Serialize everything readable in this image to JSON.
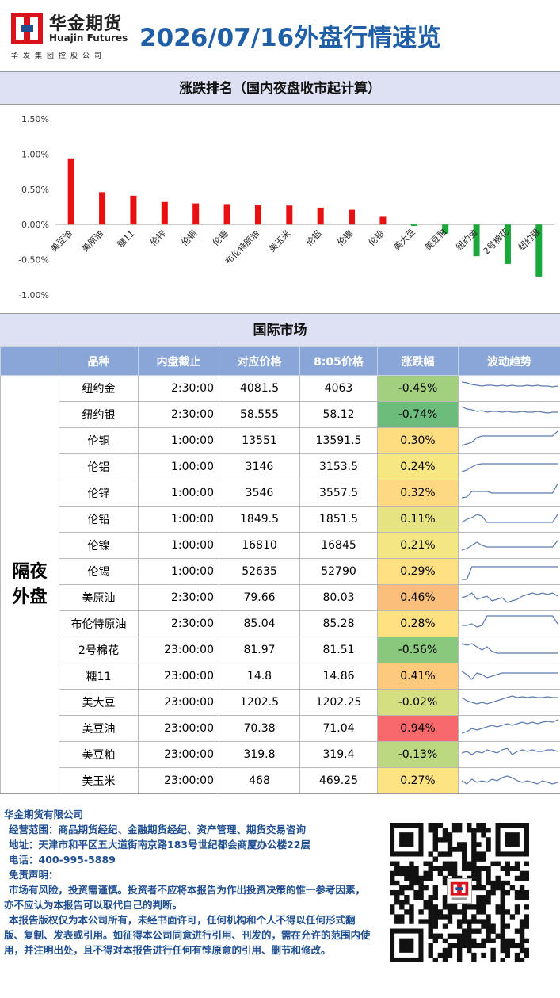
{
  "header": {
    "logo_cn": "华金期货",
    "logo_en": "Huajin Futures",
    "logo_sub": "华发集团控股公司",
    "title": "2026/07/16外盘行情速览"
  },
  "chart_title": "涨跌排名（国内夜盘收市起计算）",
  "chart_data": {
    "type": "bar",
    "categories": [
      "美豆油",
      "美原油",
      "糖11",
      "伦锌",
      "伦铜",
      "伦锡",
      "布伦特原油",
      "美玉米",
      "伦铝",
      "伦镍",
      "伦铅",
      "美大豆",
      "美豆粕",
      "纽约金",
      "2号棉花",
      "纽约银"
    ],
    "values": [
      0.94,
      0.46,
      0.41,
      0.32,
      0.3,
      0.29,
      0.28,
      0.27,
      0.24,
      0.21,
      0.11,
      -0.02,
      -0.13,
      -0.45,
      -0.56,
      -0.74
    ],
    "ylim": [
      -1.0,
      1.5
    ],
    "yticks": [
      "1.50%",
      "1.00%",
      "0.50%",
      "0.00%",
      "-0.50%",
      "-1.00%"
    ],
    "ytick_values": [
      1.5,
      1.0,
      0.5,
      0.0,
      -0.5,
      -1.0
    ],
    "colors": {
      "positive": "#e81010",
      "negative": "#1aa83a"
    }
  },
  "market_title": "国际市场",
  "table": {
    "headers": [
      "品种",
      "内盘截止",
      "对应价格",
      "8:05价格",
      "涨跌幅",
      "波动趋势"
    ],
    "group_label_1": "隔夜",
    "group_label_2": "外盘",
    "rows": [
      {
        "name": "纽约金",
        "close": "2:30:00",
        "price": "4081.5",
        "p805": "4063",
        "chg": "-0.45%",
        "color": "#a3d07f",
        "spark": [
          8,
          9,
          11,
          12,
          13,
          12,
          12,
          13,
          12,
          13,
          12,
          13,
          13,
          12,
          13,
          12,
          13,
          13,
          14,
          13
        ]
      },
      {
        "name": "纽约银",
        "close": "2:30:00",
        "price": "58.555",
        "p805": "58.12",
        "chg": "-0.74%",
        "color": "#6cbd7c",
        "spark": [
          6,
          9,
          10,
          12,
          11,
          13,
          12,
          12,
          13,
          12,
          13,
          13,
          12,
          13,
          13,
          12,
          13,
          14,
          13,
          13
        ]
      },
      {
        "name": "伦铜",
        "close": "1:00:00",
        "price": "13551",
        "p805": "13591.5",
        "chg": "0.30%",
        "color": "#fedd81",
        "spark": [
          22,
          20,
          18,
          12,
          10,
          10,
          10,
          10,
          10,
          10,
          10,
          10,
          10,
          10,
          10,
          10,
          10,
          10,
          10,
          4
        ]
      },
      {
        "name": "伦铝",
        "close": "1:00:00",
        "price": "3146",
        "p805": "3153.5",
        "chg": "0.24%",
        "color": "#f7e783",
        "spark": [
          22,
          20,
          16,
          13,
          12,
          12,
          12,
          12,
          12,
          12,
          12,
          12,
          12,
          12,
          12,
          12,
          12,
          12,
          12,
          12
        ]
      },
      {
        "name": "伦锌",
        "close": "1:00:00",
        "price": "3546",
        "p805": "3557.5",
        "chg": "0.32%",
        "color": "#fed981",
        "spark": [
          22,
          21,
          14,
          14,
          14,
          14,
          16,
          16,
          16,
          16,
          16,
          16,
          16,
          16,
          16,
          16,
          16,
          16,
          16,
          4
        ]
      },
      {
        "name": "伦铅",
        "close": "1:00:00",
        "price": "1849.5",
        "p805": "1851.5",
        "chg": "0.11%",
        "color": "#e5e382",
        "spark": [
          20,
          16,
          14,
          10,
          12,
          20,
          20,
          20,
          20,
          20,
          20,
          20,
          20,
          20,
          20,
          20,
          20,
          20,
          20,
          10
        ]
      },
      {
        "name": "伦镍",
        "close": "1:00:00",
        "price": "16810",
        "p805": "16845",
        "chg": "0.21%",
        "color": "#f4e783",
        "spark": [
          22,
          20,
          16,
          12,
          16,
          18,
          18,
          18,
          18,
          18,
          18,
          18,
          18,
          18,
          18,
          18,
          18,
          18,
          18,
          10
        ]
      },
      {
        "name": "伦锡",
        "close": "1:00:00",
        "price": "52635",
        "p805": "52790",
        "chg": "0.29%",
        "color": "#fee082",
        "spark": [
          26,
          26,
          10,
          10,
          10,
          10,
          10,
          10,
          10,
          10,
          10,
          10,
          10,
          10,
          10,
          10,
          10,
          10,
          10,
          10
        ]
      },
      {
        "name": "美原油",
        "close": "2:30:00",
        "price": "79.66",
        "p805": "80.03",
        "chg": "0.46%",
        "color": "#fcbf7b",
        "spark": [
          16,
          14,
          10,
          18,
          16,
          14,
          20,
          18,
          16,
          22,
          20,
          18,
          14,
          12,
          10,
          12,
          10,
          12,
          10,
          14
        ]
      },
      {
        "name": "布伦特原油",
        "close": "2:30:00",
        "price": "85.04",
        "p805": "85.28",
        "chg": "0.28%",
        "color": "#fee282",
        "spark": [
          18,
          18,
          16,
          20,
          18,
          6,
          6,
          6,
          6,
          6,
          6,
          6,
          6,
          6,
          6,
          6,
          6,
          6,
          6,
          16
        ]
      },
      {
        "name": "2号棉花",
        "close": "23:00:00",
        "price": "81.97",
        "p805": "81.51",
        "chg": "-0.56%",
        "color": "#8ac97d",
        "spark": [
          8,
          10,
          8,
          12,
          16,
          12,
          18,
          20,
          20,
          20,
          20,
          20,
          20,
          20,
          20,
          20,
          20,
          20,
          20,
          20
        ]
      },
      {
        "name": "糖11",
        "close": "23:00:00",
        "price": "14.8",
        "p805": "14.86",
        "chg": "0.41%",
        "color": "#fdc97d",
        "spark": [
          10,
          14,
          20,
          12,
          14,
          18,
          16,
          14,
          12,
          12,
          12,
          12,
          12,
          12,
          12,
          12,
          12,
          12,
          12,
          12
        ]
      },
      {
        "name": "美大豆",
        "close": "23:00:00",
        "price": "1202.5",
        "p805": "1202.25",
        "chg": "-0.02%",
        "color": "#d4df82",
        "spark": [
          10,
          14,
          16,
          18,
          16,
          18,
          16,
          14,
          12,
          10,
          8,
          10,
          9,
          10,
          9,
          10,
          10,
          9,
          10,
          10
        ]
      },
      {
        "name": "美豆油",
        "close": "23:00:00",
        "price": "70.38",
        "p805": "71.04",
        "chg": "0.94%",
        "color": "#f8696b",
        "spark": [
          22,
          20,
          16,
          18,
          16,
          14,
          12,
          14,
          12,
          10,
          12,
          10,
          8,
          10,
          8,
          10,
          8,
          7,
          8,
          5
        ]
      },
      {
        "name": "美豆粕",
        "close": "23:00:00",
        "price": "319.8",
        "p805": "319.4",
        "chg": "-0.13%",
        "color": "#bcd881",
        "spark": [
          14,
          12,
          16,
          12,
          14,
          10,
          12,
          14,
          10,
          8,
          16,
          12,
          10,
          12,
          10,
          12,
          12,
          10,
          10,
          12
        ]
      },
      {
        "name": "美玉米",
        "close": "23:00:00",
        "price": "468",
        "p805": "469.25",
        "chg": "0.27%",
        "color": "#fde382",
        "spark": [
          16,
          20,
          14,
          18,
          16,
          18,
          14,
          16,
          12,
          10,
          12,
          16,
          18,
          16,
          18,
          20,
          16,
          18,
          20,
          18
        ]
      }
    ]
  },
  "footer": {
    "company": "华金期货有限公司",
    "scope": "经营范围：商品期货经纪、金融期货经纪、资产管理、期货交易咨询",
    "address": "地址：天津市和平区五大道街南京路183号世纪都会商厦办公楼22层",
    "phone": "电话：400-995-5889",
    "disclaimer_title": "免责声明：",
    "disclaimer_1": "市场有风险，投资需谨慎。投资者不应将本报告为作出投资决策的惟一参考因素，亦不应认为本报告可以取代自己的判断。",
    "disclaimer_2": "本报告版权仅为本公司所有，未经书面许可，任何机构和个人不得以任何形式翻版、复制、发表或引用。如征得本公司同意进行引用、刊发的，需在允许的范围内使用，并注明出处，且不得对本报告进行任何有悖原意的引用、删节和修改。"
  }
}
